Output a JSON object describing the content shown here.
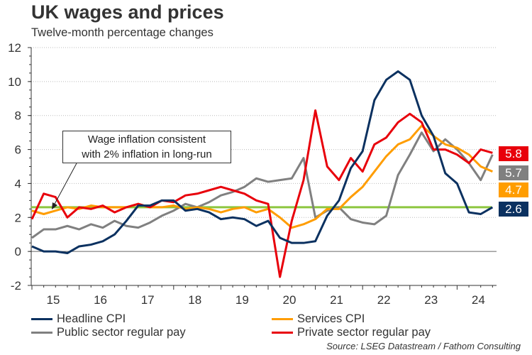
{
  "header": {
    "title": "UK wages and prices",
    "subtitle": "Twelve-month percentage changes"
  },
  "source": "Source: LSEG Datastream / Fathom Consulting",
  "annotation": {
    "line1": "Wage inflation consistent",
    "line2": "with 2% inflation in long-run"
  },
  "latest_badges": [
    {
      "series": "Private sector regular pay",
      "value": "5.8",
      "color": "#e8000b"
    },
    {
      "series": "Public sector regular pay",
      "value": "5.7",
      "color": "#808080"
    },
    {
      "series": "Services CPI",
      "value": "4.7",
      "color": "#ff9d00"
    },
    {
      "series": "Headline CPI",
      "value": "2.6",
      "color": "#0b3160"
    }
  ],
  "chart_data": {
    "type": "line",
    "title": "UK wages and prices",
    "subtitle": "Twelve-month percentage changes",
    "xlabel": "",
    "ylabel": "",
    "ylim": [
      -2,
      12
    ],
    "yticks": [
      "12",
      "10",
      "8",
      "6",
      "4",
      "2",
      "0",
      "-2"
    ],
    "yticks_values": [
      12,
      10,
      8,
      6,
      4,
      2,
      0,
      -2
    ],
    "xticks": [
      "15",
      "16",
      "17",
      "18",
      "19",
      "20",
      "21",
      "22",
      "23",
      "24"
    ],
    "x_start": "2015-01",
    "frequency": "quarterly-approx",
    "grid": "horizontal dotted",
    "legend_position": "bottom",
    "reference_line": {
      "label": "Wage inflation consistent with 2% inflation in long-run",
      "value": 2.6,
      "color": "#8dc63f"
    },
    "series": [
      {
        "name": "Headline CPI",
        "color": "#0b3160",
        "x": [
          2015.0,
          2015.25,
          2015.5,
          2015.75,
          2016.0,
          2016.25,
          2016.5,
          2016.75,
          2017.0,
          2017.25,
          2017.5,
          2017.75,
          2018.0,
          2018.25,
          2018.5,
          2018.75,
          2019.0,
          2019.25,
          2019.5,
          2019.75,
          2020.0,
          2020.25,
          2020.5,
          2020.75,
          2021.0,
          2021.25,
          2021.5,
          2021.75,
          2022.0,
          2022.25,
          2022.5,
          2022.75,
          2023.0,
          2023.25,
          2023.5,
          2023.75,
          2024.0,
          2024.25,
          2024.5,
          2024.75
        ],
        "values": [
          0.3,
          0.0,
          0.0,
          -0.1,
          0.3,
          0.4,
          0.6,
          1.0,
          1.8,
          2.7,
          2.7,
          3.0,
          3.0,
          2.4,
          2.5,
          2.3,
          1.9,
          2.0,
          1.9,
          1.5,
          1.8,
          0.8,
          0.5,
          0.5,
          0.6,
          2.1,
          3.0,
          4.9,
          5.9,
          8.9,
          10.1,
          10.6,
          10.1,
          8.0,
          6.8,
          4.6,
          4.0,
          2.3,
          2.2,
          2.6
        ]
      },
      {
        "name": "Services CPI",
        "color": "#ff9d00",
        "x": [
          2015.0,
          2015.25,
          2015.5,
          2015.75,
          2016.0,
          2016.25,
          2016.5,
          2016.75,
          2017.0,
          2017.25,
          2017.5,
          2017.75,
          2018.0,
          2018.25,
          2018.5,
          2018.75,
          2019.0,
          2019.25,
          2019.5,
          2019.75,
          2020.0,
          2020.25,
          2020.5,
          2020.75,
          2021.0,
          2021.25,
          2021.5,
          2021.75,
          2022.0,
          2022.25,
          2022.5,
          2022.75,
          2023.0,
          2023.25,
          2023.5,
          2023.75,
          2024.0,
          2024.25,
          2024.5,
          2024.75
        ],
        "values": [
          2.4,
          2.2,
          2.4,
          2.6,
          2.5,
          2.7,
          2.6,
          2.6,
          2.6,
          2.8,
          2.6,
          2.6,
          2.7,
          2.5,
          2.6,
          2.5,
          2.3,
          2.5,
          2.6,
          2.3,
          2.5,
          2.0,
          1.4,
          1.6,
          1.9,
          2.5,
          2.5,
          3.2,
          3.8,
          4.7,
          5.6,
          6.3,
          6.6,
          7.4,
          6.8,
          6.3,
          6.1,
          5.7,
          5.0,
          4.7
        ]
      },
      {
        "name": "Public sector regular pay",
        "color": "#808080",
        "x": [
          2015.0,
          2015.25,
          2015.5,
          2015.75,
          2016.0,
          2016.25,
          2016.5,
          2016.75,
          2017.0,
          2017.25,
          2017.5,
          2017.75,
          2018.0,
          2018.25,
          2018.5,
          2018.75,
          2019.0,
          2019.25,
          2019.5,
          2019.75,
          2020.0,
          2020.25,
          2020.5,
          2020.75,
          2021.0,
          2021.25,
          2021.5,
          2021.75,
          2022.0,
          2022.25,
          2022.5,
          2022.75,
          2023.0,
          2023.25,
          2023.5,
          2023.75,
          2024.0,
          2024.25,
          2024.5,
          2024.75
        ],
        "values": [
          0.8,
          1.3,
          1.3,
          1.5,
          1.3,
          1.6,
          1.4,
          1.8,
          1.5,
          1.4,
          1.7,
          2.1,
          2.4,
          2.8,
          2.6,
          2.9,
          3.3,
          3.5,
          3.8,
          4.3,
          4.1,
          4.2,
          4.3,
          5.5,
          2.0,
          2.4,
          2.6,
          1.9,
          1.7,
          1.6,
          2.1,
          4.5,
          5.7,
          7.0,
          5.9,
          6.6,
          6.0,
          5.2,
          4.2,
          5.7
        ]
      },
      {
        "name": "Private sector regular pay",
        "color": "#e8000b",
        "x": [
          2015.0,
          2015.25,
          2015.5,
          2015.75,
          2016.0,
          2016.25,
          2016.5,
          2016.75,
          2017.0,
          2017.25,
          2017.5,
          2017.75,
          2018.0,
          2018.25,
          2018.5,
          2018.75,
          2019.0,
          2019.25,
          2019.5,
          2019.75,
          2020.0,
          2020.25,
          2020.5,
          2020.75,
          2021.0,
          2021.25,
          2021.5,
          2021.75,
          2022.0,
          2022.25,
          2022.5,
          2022.75,
          2023.0,
          2023.25,
          2023.5,
          2023.75,
          2024.0,
          2024.25,
          2024.5,
          2024.75
        ],
        "values": [
          1.9,
          3.4,
          3.2,
          2.0,
          2.6,
          2.5,
          2.7,
          2.3,
          2.6,
          2.8,
          2.6,
          3.0,
          2.9,
          3.3,
          3.4,
          3.6,
          3.8,
          3.6,
          3.4,
          3.0,
          2.8,
          -1.5,
          1.8,
          4.2,
          8.3,
          5.0,
          4.2,
          5.5,
          4.7,
          6.3,
          6.7,
          7.6,
          8.1,
          7.6,
          6.0,
          6.0,
          5.7,
          5.2,
          6.0,
          5.8
        ]
      }
    ]
  }
}
